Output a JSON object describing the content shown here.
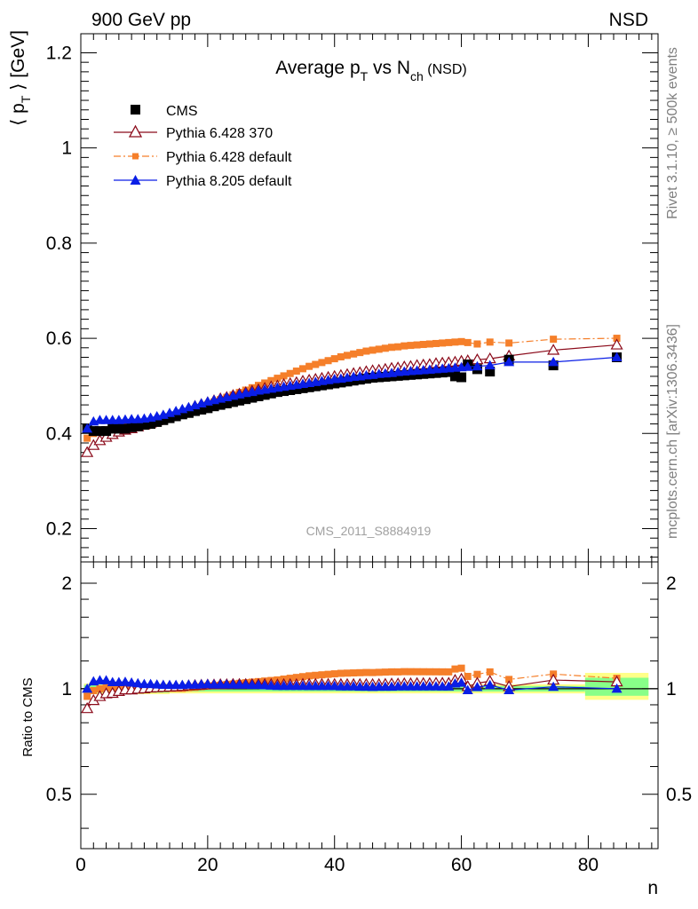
{
  "header": {
    "energy": "900 GeV pp",
    "process": "NSD"
  },
  "side_labels": {
    "rivet": "Rivet 3.1.10, ≥ 500k events",
    "source": "mcplots.cern.ch [arXiv:1306.3436]"
  },
  "chart_data": {
    "type": "scatter",
    "title": {
      "main": "Average p",
      "sub1": "T",
      "mid": " vs N",
      "sub2": "ch",
      "suffix": " (NSD)"
    },
    "analysis_tag": "CMS_2011_S8884919",
    "xlabel": "n",
    "ylabel": {
      "open": "⟨ p",
      "sub": "T",
      "close": " ⟩ [GeV]"
    },
    "ratio_ylabel": "Ratio to CMS",
    "xlim": [
      0,
      91
    ],
    "ylim": [
      0.13,
      1.24
    ],
    "ratio_ylim": [
      0.35,
      2.3
    ],
    "ratio_scale": "log",
    "x_ticks": [
      "0",
      "20",
      "40",
      "60",
      "80"
    ],
    "y_ticks": [
      "0.2",
      "0.4",
      "0.6",
      "0.8",
      "1",
      "1.2"
    ],
    "ratio_ticks": [
      "0.5",
      "1",
      "2"
    ],
    "legend_position": "top-left",
    "x": [
      1,
      2,
      3,
      4,
      5,
      6,
      7,
      8,
      9,
      10,
      11,
      12,
      13,
      14,
      15,
      16,
      17,
      18,
      19,
      20,
      21,
      22,
      23,
      24,
      25,
      26,
      27,
      28,
      29,
      30,
      31,
      32,
      33,
      34,
      35,
      36,
      37,
      38,
      39,
      40,
      41,
      42,
      43,
      44,
      45,
      46,
      47,
      48,
      49,
      50,
      51,
      52,
      53,
      54,
      55,
      56,
      57,
      58,
      59,
      60,
      61,
      62.5,
      64.5,
      67.5,
      74.5,
      84.5
    ],
    "series": [
      {
        "name": "CMS",
        "color": "#000000",
        "marker": "filled-square",
        "values": [
          0.41,
          0.405,
          0.405,
          0.405,
          0.41,
          0.41,
          0.41,
          0.413,
          0.415,
          0.418,
          0.42,
          0.424,
          0.428,
          0.432,
          0.436,
          0.44,
          0.443,
          0.447,
          0.45,
          0.453,
          0.457,
          0.46,
          0.463,
          0.466,
          0.469,
          0.472,
          0.475,
          0.478,
          0.481,
          0.484,
          0.487,
          0.489,
          0.491,
          0.493,
          0.495,
          0.497,
          0.499,
          0.501,
          0.503,
          0.505,
          0.507,
          0.509,
          0.511,
          0.513,
          0.515,
          0.517,
          0.518,
          0.519,
          0.52,
          0.521,
          0.522,
          0.523,
          0.524,
          0.525,
          0.526,
          0.527,
          0.528,
          0.529,
          0.52,
          0.518,
          0.545,
          0.535,
          0.53,
          0.555,
          0.543,
          0.56
        ]
      },
      {
        "name": "Pythia 6.428 370",
        "color": "#8b0a1a",
        "marker": "open-triangle",
        "values": [
          0.36,
          0.375,
          0.385,
          0.392,
          0.398,
          0.403,
          0.407,
          0.41,
          0.414,
          0.418,
          0.422,
          0.427,
          0.432,
          0.437,
          0.442,
          0.447,
          0.452,
          0.457,
          0.461,
          0.465,
          0.469,
          0.473,
          0.476,
          0.48,
          0.483,
          0.486,
          0.489,
          0.492,
          0.495,
          0.498,
          0.5,
          0.503,
          0.505,
          0.507,
          0.51,
          0.512,
          0.514,
          0.516,
          0.518,
          0.52,
          0.522,
          0.524,
          0.526,
          0.528,
          0.53,
          0.532,
          0.533,
          0.535,
          0.537,
          0.538,
          0.54,
          0.541,
          0.543,
          0.544,
          0.545,
          0.547,
          0.548,
          0.549,
          0.55,
          0.552,
          0.553,
          0.555,
          0.557,
          0.563,
          0.575,
          0.586
        ]
      },
      {
        "name": "Pythia 6.428 default",
        "color": "#f57f2a",
        "marker": "small-square",
        "line": "dash-dot",
        "values": [
          0.39,
          0.4,
          0.405,
          0.408,
          0.41,
          0.412,
          0.414,
          0.416,
          0.418,
          0.42,
          0.423,
          0.426,
          0.429,
          0.433,
          0.437,
          0.441,
          0.446,
          0.451,
          0.456,
          0.461,
          0.466,
          0.471,
          0.476,
          0.481,
          0.486,
          0.491,
          0.496,
          0.501,
          0.506,
          0.511,
          0.516,
          0.521,
          0.526,
          0.531,
          0.536,
          0.541,
          0.545,
          0.549,
          0.553,
          0.557,
          0.561,
          0.564,
          0.567,
          0.57,
          0.573,
          0.575,
          0.577,
          0.579,
          0.581,
          0.582,
          0.584,
          0.585,
          0.586,
          0.587,
          0.588,
          0.589,
          0.59,
          0.591,
          0.592,
          0.593,
          0.591,
          0.588,
          0.592,
          0.59,
          0.598,
          0.6
        ]
      },
      {
        "name": "Pythia 8.205 default",
        "color": "#0a1ee6",
        "marker": "filled-triangle",
        "values": [
          0.41,
          0.425,
          0.428,
          0.428,
          0.428,
          0.428,
          0.429,
          0.43,
          0.43,
          0.431,
          0.433,
          0.436,
          0.439,
          0.443,
          0.447,
          0.451,
          0.455,
          0.459,
          0.463,
          0.467,
          0.47,
          0.473,
          0.476,
          0.479,
          0.482,
          0.485,
          0.487,
          0.49,
          0.492,
          0.494,
          0.496,
          0.498,
          0.5,
          0.502,
          0.504,
          0.506,
          0.508,
          0.51,
          0.512,
          0.514,
          0.515,
          0.517,
          0.519,
          0.52,
          0.522,
          0.523,
          0.525,
          0.526,
          0.527,
          0.529,
          0.53,
          0.531,
          0.532,
          0.533,
          0.534,
          0.535,
          0.536,
          0.537,
          0.538,
          0.539,
          0.54,
          0.541,
          0.543,
          0.55,
          0.55,
          0.56
        ]
      }
    ],
    "uncertainty_bands": {
      "ratio_colors": [
        "#ffff88",
        "#88ff88"
      ],
      "segments": [
        {
          "x": [
            0.5,
            14
          ],
          "outer": [
            0.965,
            1.035
          ],
          "inner": [
            0.975,
            1.025
          ]
        },
        {
          "x": [
            14,
            79.5
          ],
          "outer": [
            0.97,
            1.03
          ],
          "inner": [
            0.982,
            1.018
          ]
        },
        {
          "x": [
            79.5,
            89.5
          ],
          "outer": [
            0.93,
            1.11
          ],
          "inner": [
            0.955,
            1.075
          ]
        }
      ]
    }
  }
}
